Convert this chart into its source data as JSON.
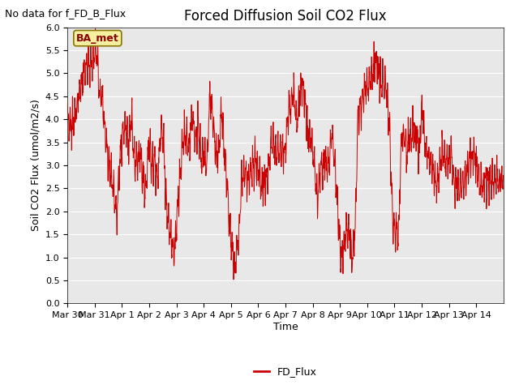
{
  "title": "Forced Diffusion Soil CO2 Flux",
  "ylabel": "Soil CO2 Flux (umol/m2/s)",
  "xlabel": "Time",
  "legend_label": "FD_Flux",
  "no_data_text": "No data for f_FD_B_Flux",
  "ba_met_label": "BA_met",
  "line_color": "#cc0000",
  "legend_line_color": "#cc0000",
  "ylim": [
    0.0,
    6.0
  ],
  "yticks": [
    0.0,
    0.5,
    1.0,
    1.5,
    2.0,
    2.5,
    3.0,
    3.5,
    4.0,
    4.5,
    5.0,
    5.5,
    6.0
  ],
  "background_color": "#e8e8e8",
  "fig_background": "#ffffff",
  "title_fontsize": 12,
  "axis_label_fontsize": 9,
  "tick_fontsize": 8,
  "no_data_fontsize": 9,
  "ba_met_fontsize": 9,
  "n_points": 2000
}
